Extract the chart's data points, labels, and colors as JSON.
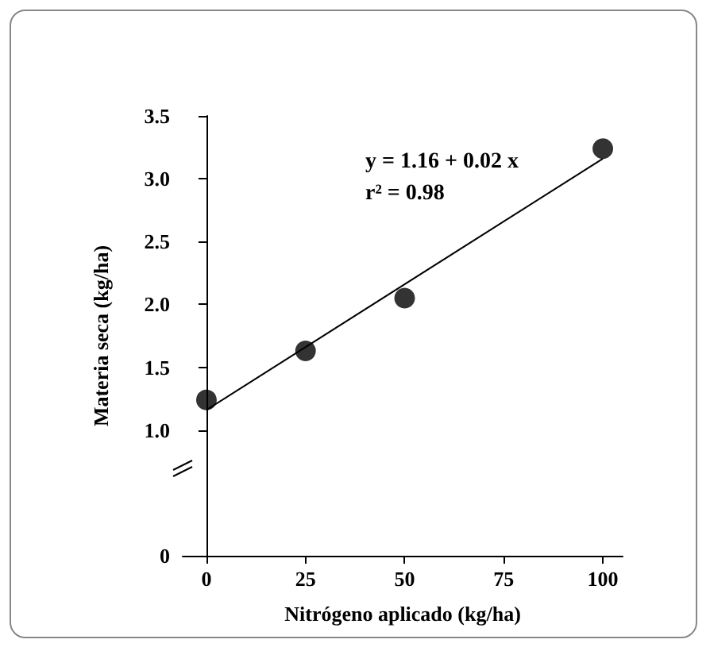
{
  "chart_data": {
    "type": "scatter",
    "xlabel": "Nitrógeno aplicado (kg/ha)",
    "ylabel": "Materia seca (kg/ha)",
    "annotations": [
      "y = 1.16 + 0.02 x",
      "r² = 0.98"
    ],
    "series": [
      {
        "type": "scatter",
        "color": "#000000",
        "x": [
          0,
          25,
          50,
          100
        ],
        "values": [
          1.24,
          1.63,
          2.05,
          3.24
        ],
        "marker": "circle"
      },
      {
        "type": "line",
        "color": "#000000",
        "x": [
          0,
          100
        ],
        "values": [
          1.16,
          3.16
        ],
        "marker": "none",
        "line_style": "solid"
      }
    ],
    "xlim": [
      -6,
      105
    ],
    "xticks": [
      0,
      25,
      50,
      75,
      100
    ],
    "ylim": [
      0,
      3.5
    ],
    "yticks": [
      0,
      {
        "value": 1.0,
        "label": "1.0"
      },
      {
        "value": 1.5,
        "label": "1.5"
      },
      {
        "value": 2.0,
        "label": "2.0"
      },
      {
        "value": 2.5,
        "label": "2.5"
      },
      {
        "value": 3.0,
        "label": "3.0"
      },
      {
        "value": 3.5,
        "label": "3.5"
      }
    ],
    "grid": false
  }
}
